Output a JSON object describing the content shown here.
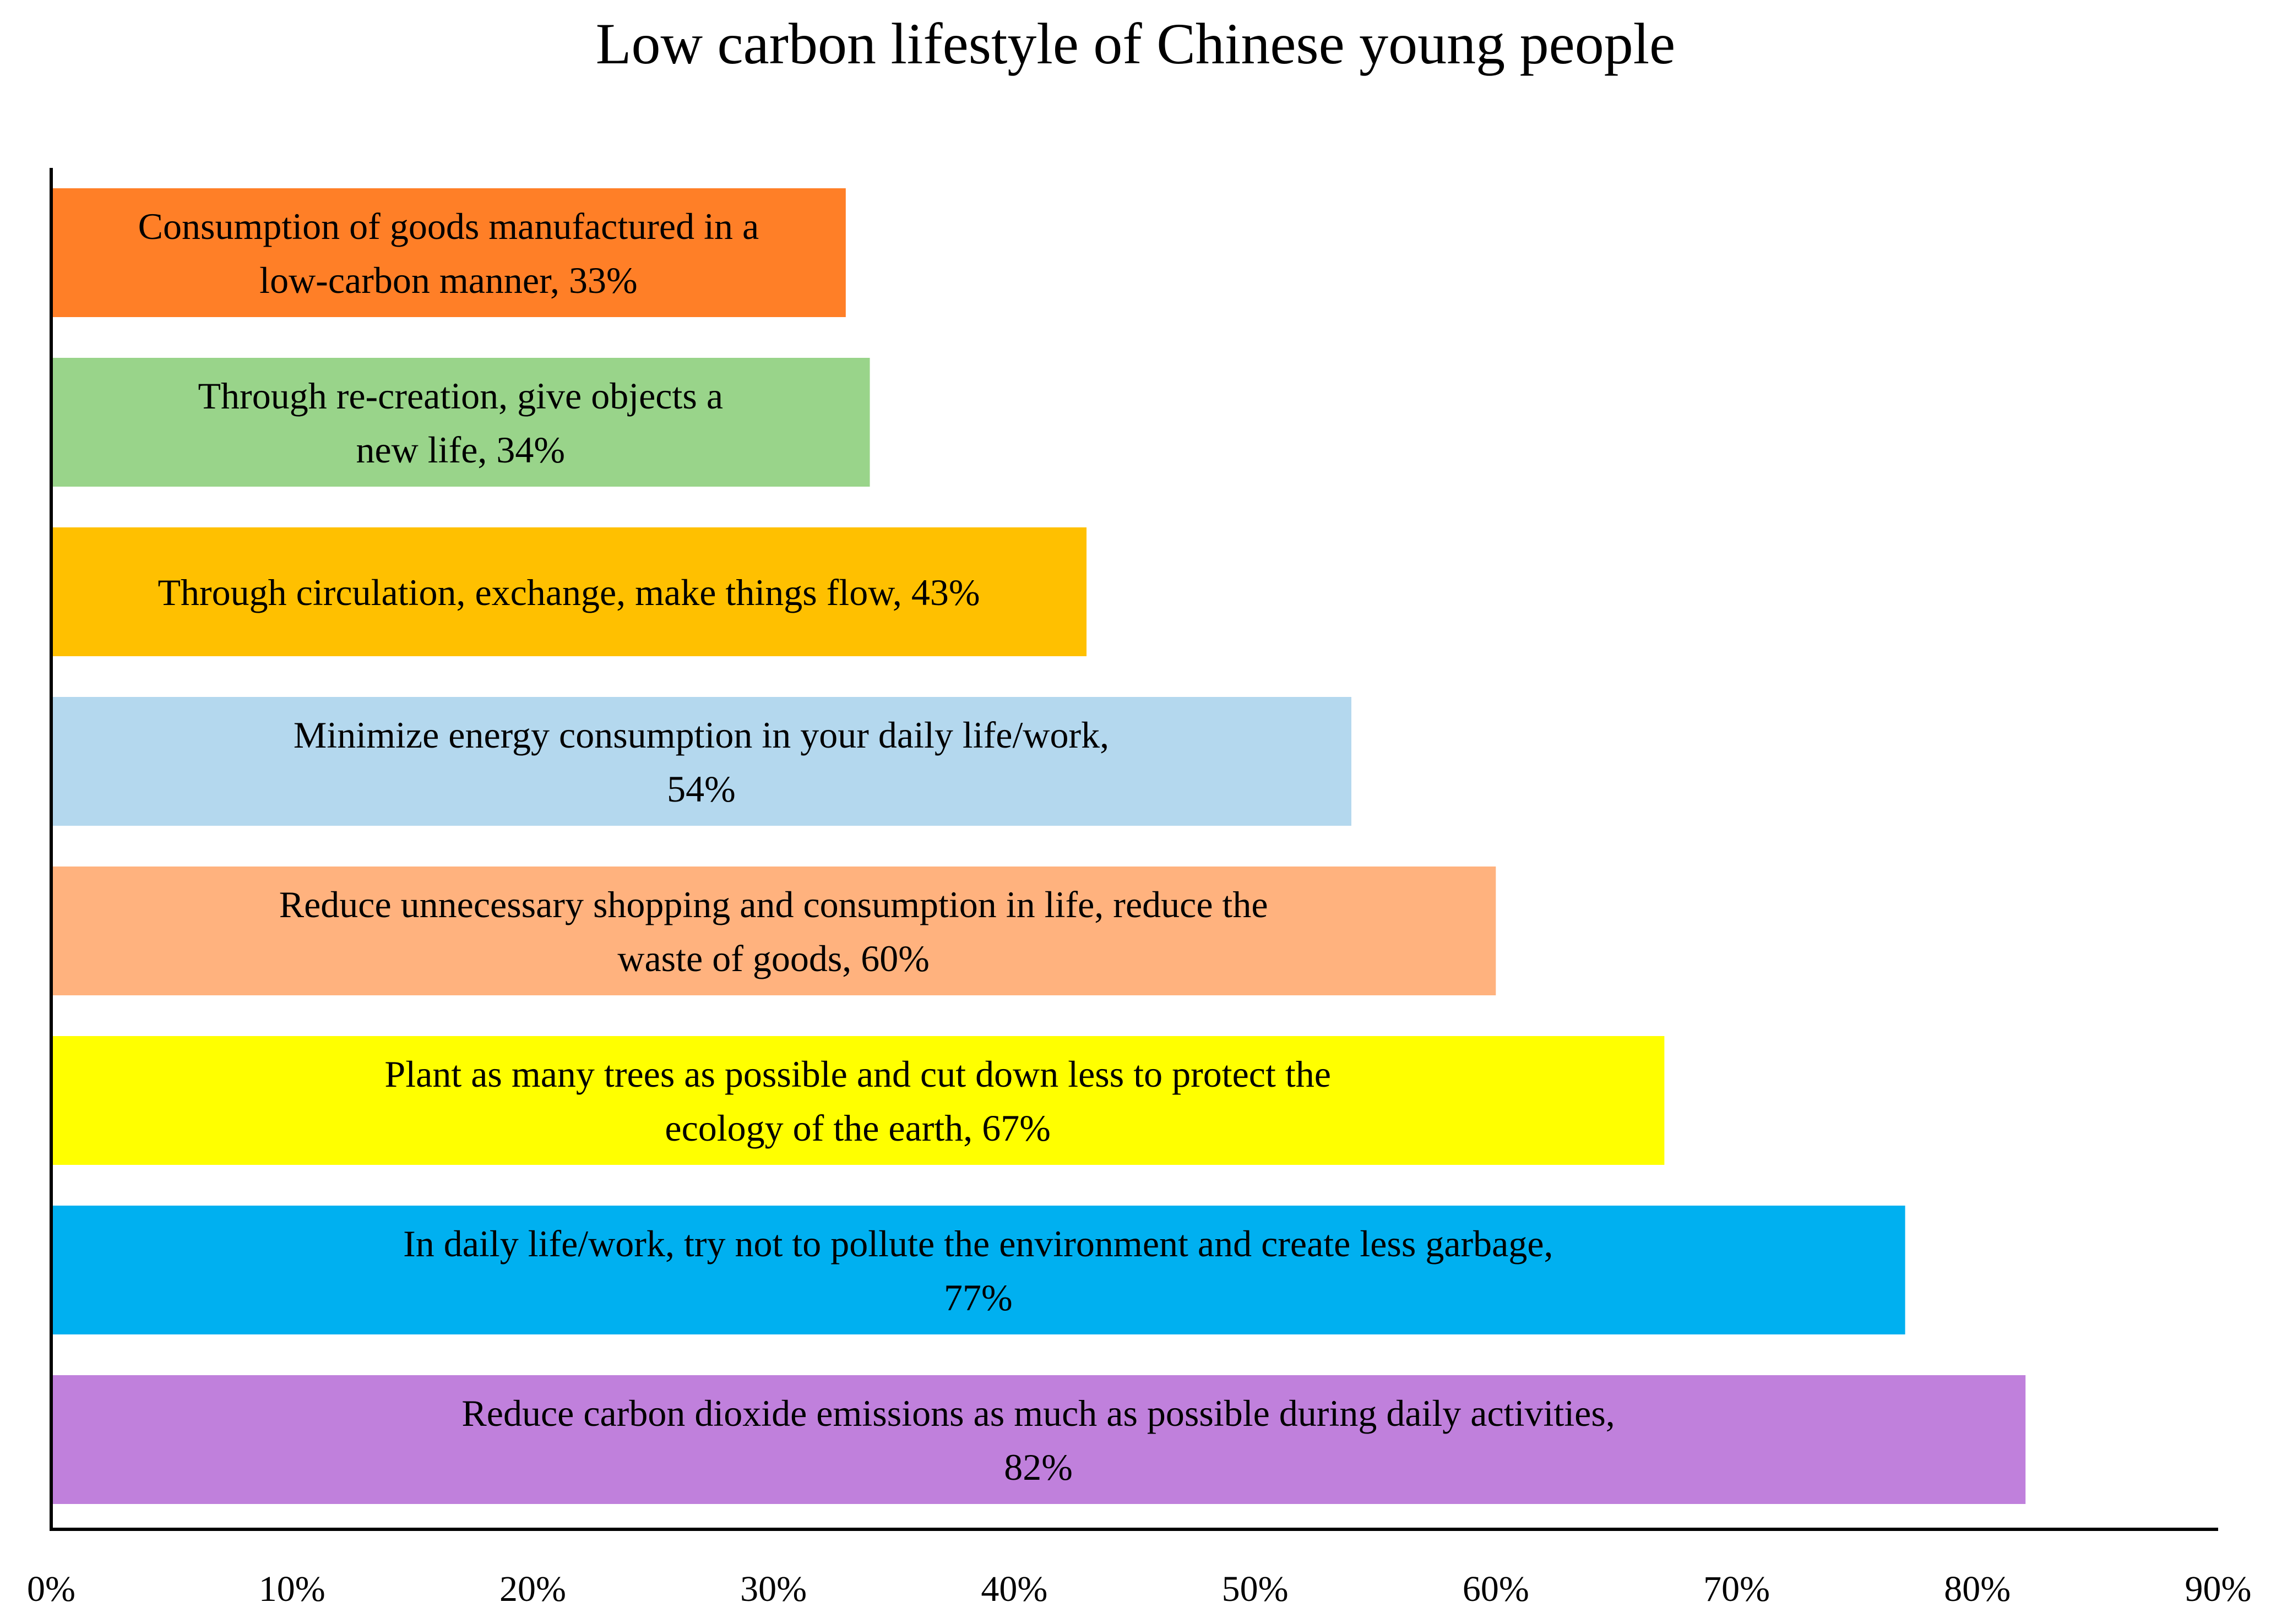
{
  "chart_data": {
    "type": "bar",
    "orientation": "horizontal",
    "title": "Low carbon lifestyle of Chinese young people",
    "xlabel": "",
    "ylabel": "",
    "xlim": [
      0,
      90
    ],
    "grid": false,
    "legend": "none",
    "x_ticks": [
      "0%",
      "10%",
      "20%",
      "30%",
      "40%",
      "50%",
      "60%",
      "70%",
      "80%",
      "90%"
    ],
    "categories": [
      "Consumption of goods manufactured in a low-carbon manner",
      "Through re-creation, give objects a new life",
      "Through circulation, exchange, make things flow",
      "Minimize energy consumption in your daily life/work",
      "Reduce unnecessary shopping and consumption in life, reduce the waste of goods",
      "Plant as many trees as possible and cut down less to protect the ecology of the earth",
      "In daily life/work, try not to pollute the environment and create less garbage",
      "Reduce carbon dioxide emissions as much as possible during daily activities"
    ],
    "values": [
      33,
      34,
      43,
      54,
      60,
      67,
      77,
      82
    ],
    "bar_labels": [
      [
        "Consumption of goods manufactured in a",
        "low-carbon manner, 33%"
      ],
      [
        "Through re-creation, give objects a",
        "new life, 34%"
      ],
      [
        "Through circulation, exchange, make things flow, 43%"
      ],
      [
        "Minimize energy consumption in your daily life/work,",
        "54%"
      ],
      [
        "Reduce unnecessary shopping and consumption in life, reduce the",
        "waste of goods, 60%"
      ],
      [
        "Plant as many trees as possible and cut down less to protect the",
        "ecology of the earth, 67%"
      ],
      [
        "In daily life/work, try not to pollute the environment and create less garbage,",
        "77%"
      ],
      [
        "Reduce carbon dioxide emissions as much as possible during daily activities,",
        "82%"
      ]
    ],
    "colors": [
      "#FF7F27",
      "#99D48A",
      "#FFC000",
      "#B4D8EE",
      "#FFB27E",
      "#FFFF00",
      "#00B0F0",
      "#C080DC"
    ]
  }
}
